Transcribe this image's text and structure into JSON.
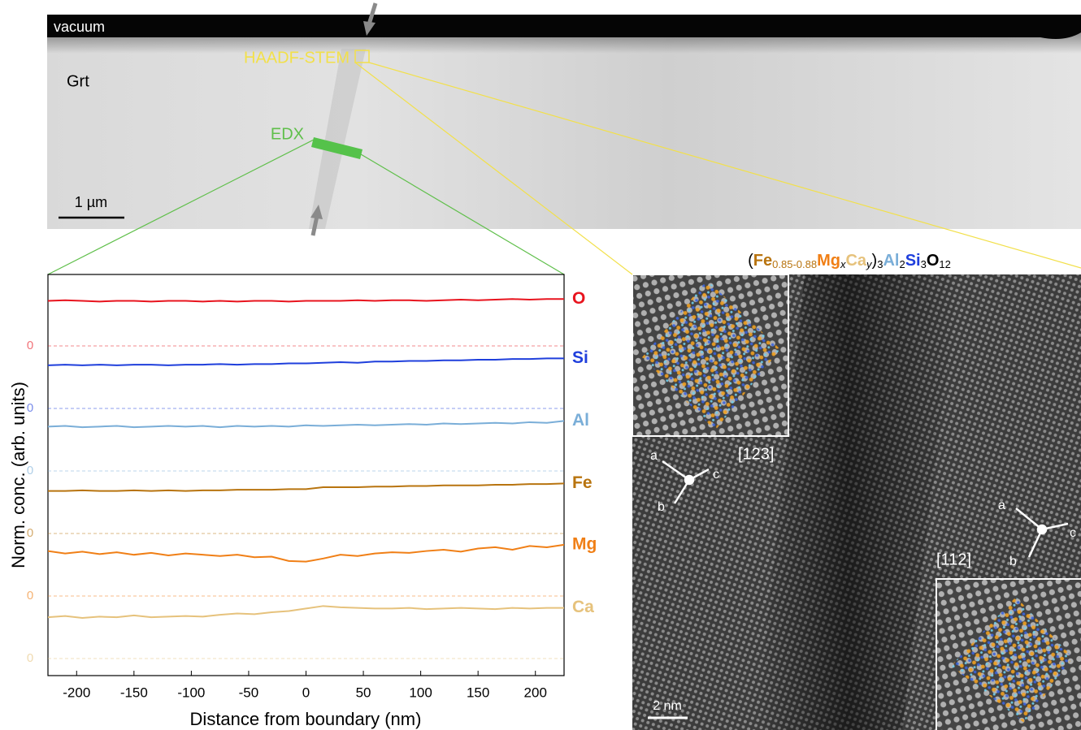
{
  "micrograph": {
    "vacuum": "vacuum",
    "phase": "Grt",
    "haadf": "HAADF-STEM",
    "edx": "EDX",
    "scale": "1 µm"
  },
  "hrtem": {
    "scale": "2 nm",
    "zone_left": "[123]",
    "zone_right": "[112]",
    "axes_left": [
      "a",
      "b",
      "c"
    ],
    "axes_right": [
      "a",
      "b",
      "c"
    ],
    "formula": [
      "(",
      "Fe",
      "0.85-0.88",
      "Mg",
      "x",
      "Ca",
      "y",
      ")",
      "3",
      "Al",
      "2",
      "Si",
      "3",
      "O",
      "12"
    ]
  },
  "chart_data": {
    "type": "line",
    "xlabel": "Distance from boundary (nm)",
    "ylabel": "Norm. conc. (arb. units)",
    "xlim": [
      -225,
      225
    ],
    "xticks": [
      -200,
      -150,
      -100,
      -50,
      0,
      50,
      100,
      150,
      200
    ],
    "ylim": [
      0,
      1
    ],
    "yticks": [
      0
    ],
    "x": [
      -225,
      -210,
      -195,
      -180,
      -165,
      -150,
      -135,
      -120,
      -105,
      -90,
      -75,
      -60,
      -45,
      -30,
      -15,
      0,
      15,
      30,
      45,
      60,
      75,
      90,
      105,
      120,
      135,
      150,
      165,
      180,
      195,
      210,
      225
    ],
    "series": [
      {
        "name": "O",
        "color": "#e8141e",
        "values": [
          0.72,
          0.73,
          0.72,
          0.71,
          0.72,
          0.72,
          0.71,
          0.72,
          0.72,
          0.71,
          0.72,
          0.71,
          0.72,
          0.72,
          0.71,
          0.72,
          0.72,
          0.72,
          0.73,
          0.72,
          0.73,
          0.73,
          0.72,
          0.73,
          0.74,
          0.73,
          0.74,
          0.75,
          0.74,
          0.75,
          0.75
        ]
      },
      {
        "name": "Si",
        "color": "#1f3fdc",
        "values": [
          0.69,
          0.7,
          0.69,
          0.7,
          0.69,
          0.7,
          0.7,
          0.69,
          0.7,
          0.7,
          0.71,
          0.7,
          0.71,
          0.71,
          0.72,
          0.72,
          0.73,
          0.74,
          0.73,
          0.75,
          0.75,
          0.76,
          0.76,
          0.77,
          0.77,
          0.78,
          0.78,
          0.79,
          0.79,
          0.8,
          0.8
        ]
      },
      {
        "name": "Al",
        "color": "#7aaed8",
        "values": [
          0.71,
          0.72,
          0.7,
          0.71,
          0.72,
          0.7,
          0.71,
          0.72,
          0.71,
          0.72,
          0.7,
          0.72,
          0.71,
          0.72,
          0.71,
          0.73,
          0.72,
          0.73,
          0.74,
          0.73,
          0.74,
          0.75,
          0.74,
          0.76,
          0.75,
          0.76,
          0.77,
          0.76,
          0.78,
          0.77,
          0.8
        ]
      },
      {
        "name": "Fe",
        "color": "#b8740f",
        "values": [
          0.68,
          0.68,
          0.69,
          0.68,
          0.68,
          0.69,
          0.68,
          0.69,
          0.68,
          0.69,
          0.69,
          0.7,
          0.7,
          0.7,
          0.71,
          0.71,
          0.74,
          0.74,
          0.74,
          0.75,
          0.75,
          0.76,
          0.76,
          0.77,
          0.77,
          0.77,
          0.78,
          0.78,
          0.79,
          0.79,
          0.8
        ]
      },
      {
        "name": "Mg",
        "color": "#f07f16",
        "values": [
          0.72,
          0.68,
          0.71,
          0.67,
          0.7,
          0.66,
          0.69,
          0.65,
          0.68,
          0.66,
          0.64,
          0.66,
          0.62,
          0.63,
          0.56,
          0.55,
          0.6,
          0.66,
          0.64,
          0.68,
          0.7,
          0.69,
          0.72,
          0.74,
          0.71,
          0.76,
          0.78,
          0.74,
          0.8,
          0.78,
          0.82
        ]
      },
      {
        "name": "Ca",
        "color": "#e6c27c",
        "values": [
          0.66,
          0.68,
          0.65,
          0.67,
          0.66,
          0.69,
          0.66,
          0.67,
          0.68,
          0.67,
          0.7,
          0.72,
          0.71,
          0.74,
          0.76,
          0.8,
          0.84,
          0.82,
          0.81,
          0.8,
          0.8,
          0.81,
          0.79,
          0.8,
          0.81,
          0.8,
          0.79,
          0.81,
          0.8,
          0.81,
          0.81
        ]
      }
    ]
  }
}
